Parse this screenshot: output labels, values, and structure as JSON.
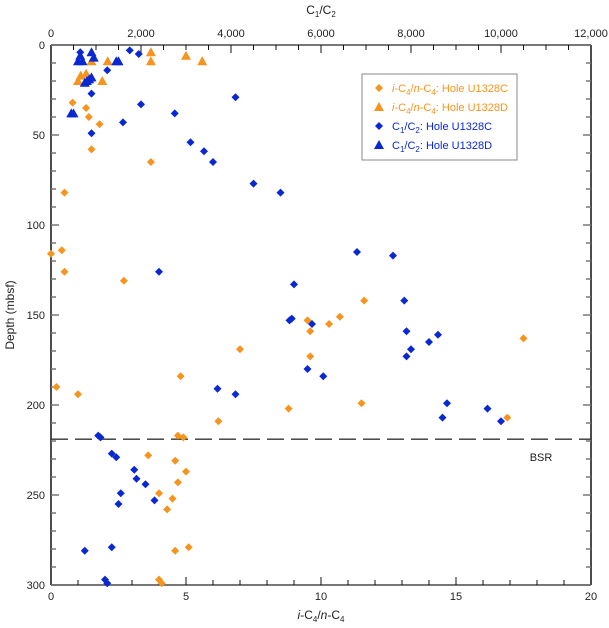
{
  "chart_data": {
    "type": "scatter",
    "title": "",
    "xlabel_bottom": "i-C4/n-C4",
    "xlabel_top": "C1/C2",
    "ylabel": "Depth (mbsf)",
    "xlim_bottom": [
      0,
      20
    ],
    "xlim_top": [
      0,
      12000
    ],
    "ylim": [
      0,
      300
    ],
    "y_inverted": true,
    "xticks_bottom": [
      "0",
      "5",
      "10",
      "15",
      "20"
    ],
    "xticks_top": [
      "0",
      "2,000",
      "4,000",
      "6,000",
      "8,000",
      "10,000",
      "12,000"
    ],
    "yticks": [
      "0",
      "50",
      "100",
      "150",
      "200",
      "250",
      "300"
    ],
    "grid": false,
    "legend_position": "top-right",
    "annotation": {
      "label": "BSR",
      "depth": 219
    },
    "series": [
      {
        "name": "i-C4/n-C4: Hole U1328C",
        "name_prefix": "i-C",
        "marker": "diamond",
        "axis": "bottom",
        "color": "#F7941D",
        "points": [
          [
            0.8,
            32
          ],
          [
            1.3,
            35
          ],
          [
            1.4,
            40
          ],
          [
            1.8,
            44
          ],
          [
            1.5,
            58
          ],
          [
            3.7,
            65
          ],
          [
            0.5,
            82
          ],
          [
            0.0,
            116
          ],
          [
            0.4,
            114
          ],
          [
            0.5,
            126
          ],
          [
            2.7,
            131
          ],
          [
            7.0,
            169
          ],
          [
            4.8,
            184
          ],
          [
            0.2,
            190
          ],
          [
            1.0,
            194
          ],
          [
            6.2,
            209
          ],
          [
            8.8,
            202
          ],
          [
            9.5,
            153
          ],
          [
            9.6,
            159
          ],
          [
            9.6,
            173
          ],
          [
            10.3,
            155
          ],
          [
            10.7,
            151
          ],
          [
            11.6,
            142
          ],
          [
            17.5,
            163
          ],
          [
            11.5,
            199
          ],
          [
            16.9,
            207
          ],
          [
            4.7,
            217
          ],
          [
            4.9,
            218
          ],
          [
            3.6,
            228
          ],
          [
            4.6,
            231
          ],
          [
            5.0,
            237
          ],
          [
            4.7,
            243
          ],
          [
            4.0,
            249
          ],
          [
            4.5,
            252
          ],
          [
            4.3,
            258
          ],
          [
            4.6,
            281
          ],
          [
            5.1,
            279
          ],
          [
            4.0,
            297
          ],
          [
            4.1,
            299
          ]
        ]
      },
      {
        "name": "i-C4/n-C4: Hole U1328D",
        "marker": "triangle",
        "axis": "bottom",
        "color": "#F7941D",
        "points": [
          [
            1.1,
            17
          ],
          [
            1.3,
            16
          ],
          [
            1.9,
            20
          ],
          [
            1.5,
            9
          ],
          [
            2.1,
            9
          ],
          [
            3.7,
            4
          ],
          [
            3.7,
            9
          ],
          [
            5.0,
            6
          ],
          [
            5.6,
            9
          ],
          [
            1.0,
            20
          ]
        ]
      },
      {
        "name": "C1/C2: Hole U1328C",
        "marker": "diamond",
        "axis": "top",
        "color": "#0A28D2",
        "points": [
          [
            650,
            4
          ],
          [
            1750,
            3
          ],
          [
            1950,
            5
          ],
          [
            1250,
            14
          ],
          [
            900,
            27
          ],
          [
            4100,
            29
          ],
          [
            2000,
            33
          ],
          [
            2750,
            38
          ],
          [
            1600,
            43
          ],
          [
            900,
            49
          ],
          [
            3100,
            54
          ],
          [
            3400,
            59
          ],
          [
            3600,
            65
          ],
          [
            4500,
            77
          ],
          [
            5100,
            82
          ],
          [
            2400,
            126
          ],
          [
            6800,
            115
          ],
          [
            7600,
            117
          ],
          [
            5400,
            133
          ],
          [
            5350,
            152
          ],
          [
            5300,
            153
          ],
          [
            5800,
            155
          ],
          [
            7850,
            142
          ],
          [
            7900,
            159
          ],
          [
            8000,
            169
          ],
          [
            7900,
            173
          ],
          [
            8400,
            165
          ],
          [
            8600,
            161
          ],
          [
            5700,
            180
          ],
          [
            6050,
            184
          ],
          [
            3700,
            191
          ],
          [
            4100,
            194
          ],
          [
            8800,
            199
          ],
          [
            8700,
            207
          ],
          [
            9700,
            202
          ],
          [
            10000,
            209
          ],
          [
            1050,
            217
          ],
          [
            1100,
            218
          ],
          [
            1350,
            227
          ],
          [
            1450,
            229
          ],
          [
            1850,
            236
          ],
          [
            1900,
            241
          ],
          [
            2100,
            244
          ],
          [
            1550,
            249
          ],
          [
            1500,
            255
          ],
          [
            2300,
            253
          ],
          [
            750,
            281
          ],
          [
            1350,
            279
          ],
          [
            1200,
            297
          ],
          [
            1250,
            299
          ]
        ]
      },
      {
        "name": "C1/C2: Hole U1328D",
        "marker": "triangle",
        "axis": "top",
        "color": "#0A28D2",
        "points": [
          [
            650,
            6
          ],
          [
            600,
            9
          ],
          [
            700,
            9
          ],
          [
            900,
            4
          ],
          [
            950,
            7
          ],
          [
            1450,
            9
          ],
          [
            1500,
            9
          ],
          [
            750,
            21
          ],
          [
            800,
            20
          ],
          [
            850,
            19
          ],
          [
            900,
            18
          ],
          [
            450,
            38
          ],
          [
            500,
            38
          ]
        ]
      }
    ]
  },
  "legend": {
    "entries": [
      {
        "label_rich": "i-C4/n-C4: Hole U1328C",
        "color": "#F7941D",
        "marker": "diamond"
      },
      {
        "label_rich": "i-C4/n-C4: Hole U1328D",
        "color": "#F7941D",
        "marker": "triangle"
      },
      {
        "label_rich": "C1/C2: Hole U1328C",
        "color": "#0A28D2",
        "marker": "diamond"
      },
      {
        "label_rich": "C1/C2: Hole U1328D",
        "color": "#0A28D2",
        "marker": "triangle"
      }
    ]
  }
}
